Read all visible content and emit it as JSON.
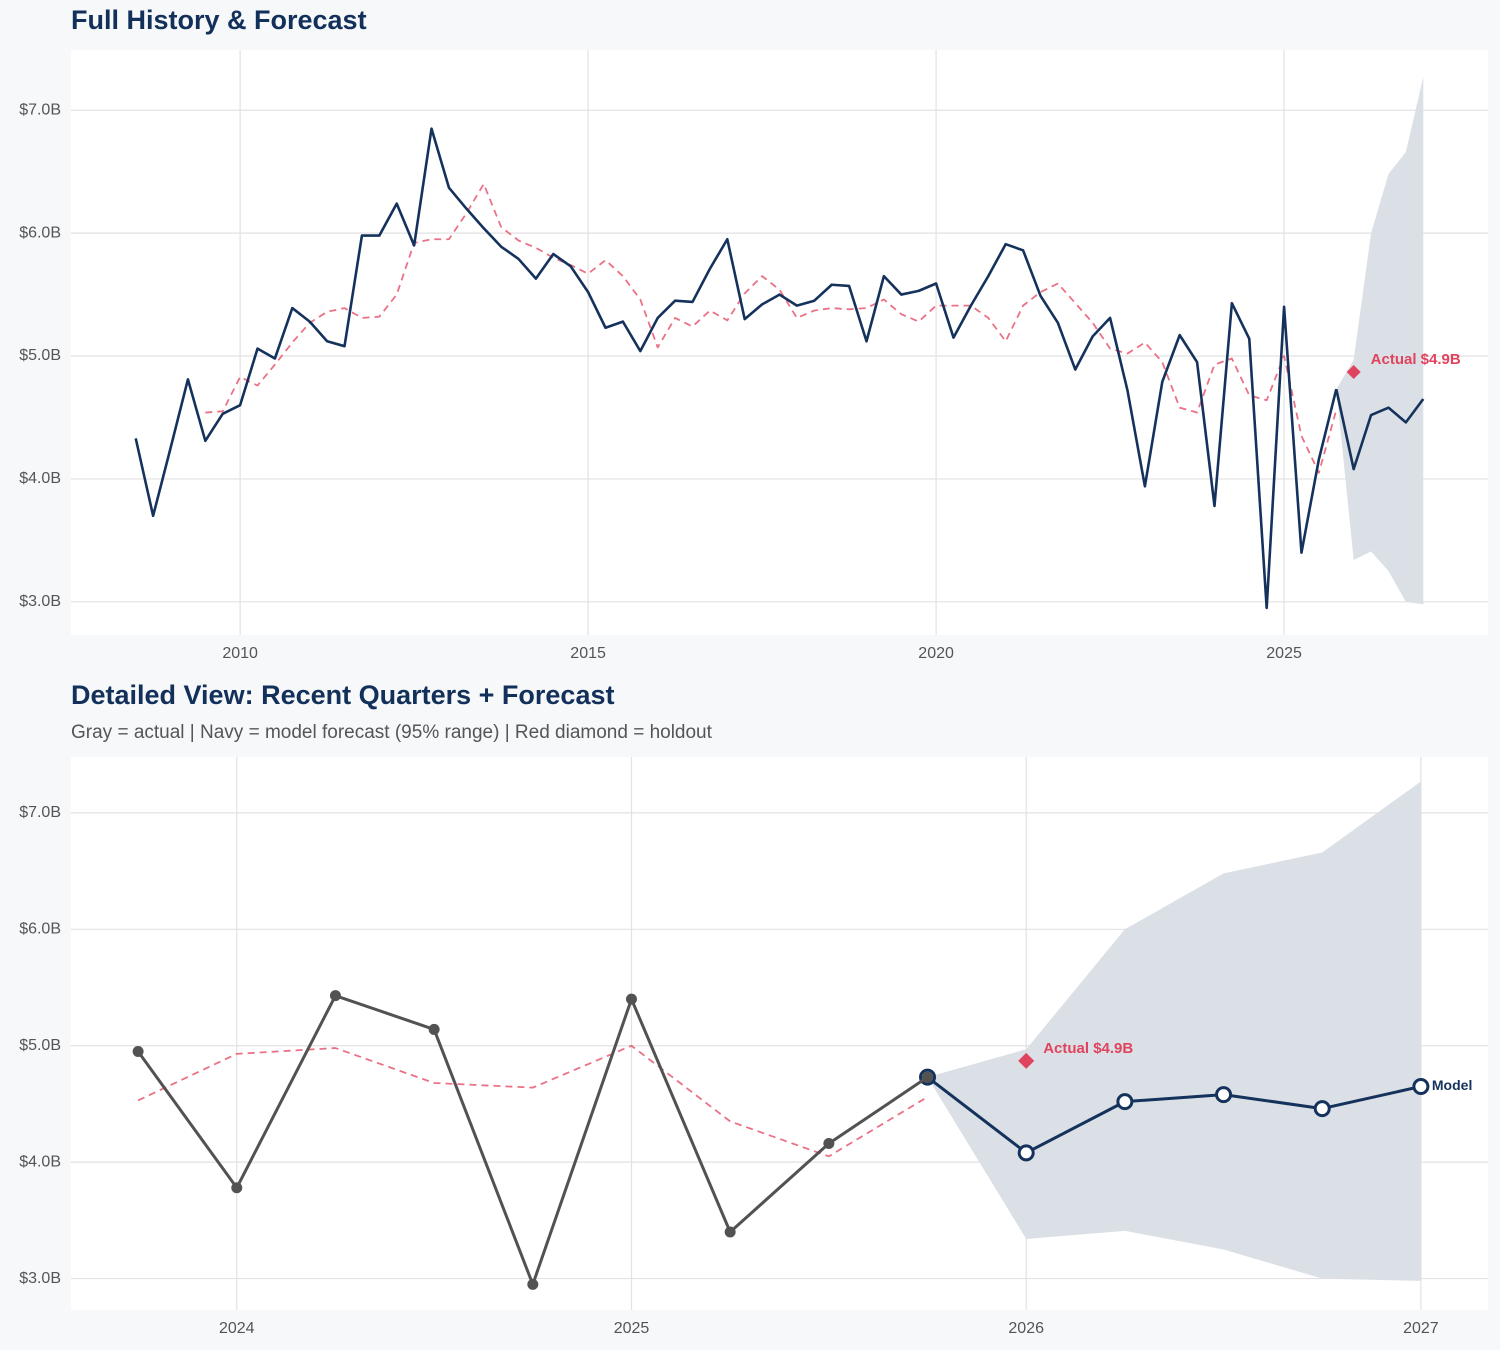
{
  "chart_data": [
    {
      "type": "line",
      "title": "Full History & Forecast",
      "xlim": [
        2007.57,
        2027.93
      ],
      "xticks": [
        2010,
        2015,
        2020,
        2025
      ],
      "ylim": [
        2.73,
        7.49
      ],
      "yticks": [
        {
          "value": 3,
          "label": "$3.0B"
        },
        {
          "value": 4,
          "label": "$4.0B"
        },
        {
          "value": 5,
          "label": "$5.0B"
        },
        {
          "value": 6,
          "label": "$6.0B"
        },
        {
          "value": 7,
          "label": "$7.0B"
        }
      ],
      "grid": true,
      "band": {
        "color": "#d9dee5",
        "x": [
          2025.75,
          2026,
          2026.25,
          2026.5,
          2026.75,
          2027
        ],
        "lower": [
          4.73,
          3.34,
          3.41,
          3.25,
          3.0,
          2.98
        ],
        "upper": [
          4.73,
          4.97,
          6.0,
          6.48,
          6.66,
          7.27
        ]
      },
      "series": [
        {
          "color": "#ea7286",
          "dash": true,
          "x": [
            2009.5,
            2009.75,
            2010,
            2010.25,
            2010.5,
            2010.75,
            2011,
            2011.25,
            2011.5,
            2011.75,
            2012,
            2012.25,
            2012.5,
            2012.75,
            2013,
            2013.25,
            2013.5,
            2013.75,
            2014,
            2014.25,
            2014.5,
            2014.75,
            2015,
            2015.25,
            2015.5,
            2015.75,
            2016,
            2016.25,
            2016.5,
            2016.75,
            2017,
            2017.25,
            2017.5,
            2017.75,
            2018,
            2018.25,
            2018.5,
            2018.75,
            2019,
            2019.25,
            2019.5,
            2019.75,
            2020,
            2020.25,
            2020.5,
            2020.75,
            2021,
            2021.25,
            2021.5,
            2021.75,
            2022,
            2022.25,
            2022.5,
            2022.75,
            2023,
            2023.25,
            2023.5,
            2023.75,
            2024,
            2024.25,
            2024.5,
            2024.75,
            2025,
            2025.25,
            2025.5,
            2025.75
          ],
          "values": [
            4.54,
            4.55,
            4.83,
            4.76,
            4.93,
            5.11,
            5.27,
            5.36,
            5.39,
            5.31,
            5.32,
            5.5,
            5.92,
            5.95,
            5.95,
            6.16,
            6.4,
            6.05,
            5.94,
            5.88,
            5.8,
            5.74,
            5.67,
            5.78,
            5.65,
            5.46,
            5.07,
            5.31,
            5.24,
            5.37,
            5.29,
            5.51,
            5.65,
            5.54,
            5.31,
            5.37,
            5.39,
            5.38,
            5.39,
            5.46,
            5.34,
            5.28,
            5.41,
            5.41,
            5.41,
            5.31,
            5.12,
            5.41,
            5.52,
            5.59,
            5.43,
            5.27,
            5.06,
            5.02,
            5.11,
            4.95,
            4.58,
            4.54,
            4.93,
            4.98,
            4.68,
            4.64,
            5.0,
            4.35,
            4.05,
            4.56
          ]
        },
        {
          "color": "#14325c",
          "x": [
            2025.75,
            2026,
            2026.25,
            2026.5,
            2026.75,
            2027
          ],
          "values": [
            4.73,
            4.08,
            4.52,
            4.58,
            4.46,
            4.65
          ]
        },
        {
          "color": "#14325c",
          "x": [
            2008.5,
            2008.75,
            2009,
            2009.25,
            2009.5,
            2009.75,
            2010,
            2010.25,
            2010.5,
            2010.75,
            2011,
            2011.25,
            2011.5,
            2011.75,
            2012,
            2012.25,
            2012.5,
            2012.75,
            2013,
            2013.25,
            2013.5,
            2013.75,
            2014,
            2014.25,
            2014.5,
            2014.75,
            2015,
            2015.25,
            2015.5,
            2015.75,
            2016,
            2016.25,
            2016.5,
            2016.75,
            2017,
            2017.25,
            2017.5,
            2017.75,
            2018,
            2018.25,
            2018.5,
            2018.75,
            2019,
            2019.25,
            2019.5,
            2019.75,
            2020,
            2020.25,
            2020.5,
            2020.75,
            2021,
            2021.25,
            2021.5,
            2021.75,
            2022,
            2022.25,
            2022.5,
            2022.75,
            2023,
            2023.25,
            2023.5,
            2023.75,
            2024,
            2024.25,
            2024.5,
            2024.75,
            2025,
            2025.25,
            2025.5,
            2025.75
          ],
          "values": [
            4.33,
            3.7,
            4.25,
            4.81,
            4.31,
            4.53,
            4.6,
            5.06,
            4.98,
            5.39,
            5.28,
            5.12,
            5.08,
            5.98,
            5.98,
            6.24,
            5.9,
            6.85,
            6.37,
            6.2,
            6.04,
            5.89,
            5.79,
            5.63,
            5.83,
            5.73,
            5.52,
            5.23,
            5.28,
            5.04,
            5.31,
            5.45,
            5.44,
            5.71,
            5.95,
            5.3,
            5.42,
            5.5,
            5.41,
            5.45,
            5.58,
            5.57,
            5.12,
            5.65,
            5.5,
            5.53,
            5.59,
            5.15,
            5.41,
            5.65,
            5.91,
            5.86,
            5.49,
            5.27,
            4.89,
            5.16,
            5.31,
            4.72,
            3.94,
            4.79,
            5.17,
            4.95,
            3.78,
            5.43,
            5.14,
            2.95,
            5.4,
            3.4,
            4.16,
            4.73
          ]
        }
      ],
      "holdout": {
        "x": 2026,
        "y": 4.87,
        "label": "Actual $4.9B",
        "color": "#e0435e"
      }
    },
    {
      "type": "line",
      "title": "Detailed View: Recent Quarters + Forecast",
      "subtitle": "Gray = actual  |  Navy = model forecast (95% range)  |  Red diamond = holdout",
      "xlim": [
        2023.58,
        2027.17
      ],
      "xticks": [
        2024,
        2025,
        2026,
        2027
      ],
      "ylim": [
        2.73,
        7.48
      ],
      "yticks": [
        {
          "value": 3,
          "label": "$3.0B"
        },
        {
          "value": 4,
          "label": "$4.0B"
        },
        {
          "value": 5,
          "label": "$5.0B"
        },
        {
          "value": 6,
          "label": "$6.0B"
        },
        {
          "value": 7,
          "label": "$7.0B"
        }
      ],
      "grid": true,
      "band": {
        "color": "#d9dee5",
        "x": [
          2025.75,
          2026,
          2026.25,
          2026.5,
          2026.75,
          2027
        ],
        "lower": [
          4.73,
          3.34,
          3.41,
          3.25,
          3.0,
          2.98
        ],
        "upper": [
          4.73,
          4.97,
          6.0,
          6.48,
          6.66,
          7.27
        ]
      },
      "series": [
        {
          "color": "#ea7286",
          "dash": true,
          "x": [
            2023.75,
            2024,
            2024.25,
            2024.5,
            2024.75,
            2025,
            2025.25,
            2025.5,
            2025.75
          ],
          "values": [
            4.53,
            4.93,
            4.98,
            4.68,
            4.64,
            5.0,
            4.35,
            4.05,
            4.56
          ]
        },
        {
          "color": "#14325c",
          "marker": "open",
          "label": "Model",
          "x": [
            2025.75,
            2026,
            2026.25,
            2026.5,
            2026.75,
            2027
          ],
          "values": [
            4.73,
            4.08,
            4.52,
            4.58,
            4.46,
            4.65
          ]
        },
        {
          "color": "#525252",
          "marker": "filled",
          "x": [
            2023.75,
            2024,
            2024.25,
            2024.5,
            2024.75,
            2025,
            2025.25,
            2025.5,
            2025.75
          ],
          "values": [
            4.95,
            3.78,
            5.43,
            5.14,
            2.95,
            5.4,
            3.4,
            4.16,
            4.73
          ]
        }
      ],
      "holdout": {
        "x": 2026,
        "y": 4.87,
        "label": "Actual $4.9B",
        "color": "#e0435e"
      }
    }
  ]
}
